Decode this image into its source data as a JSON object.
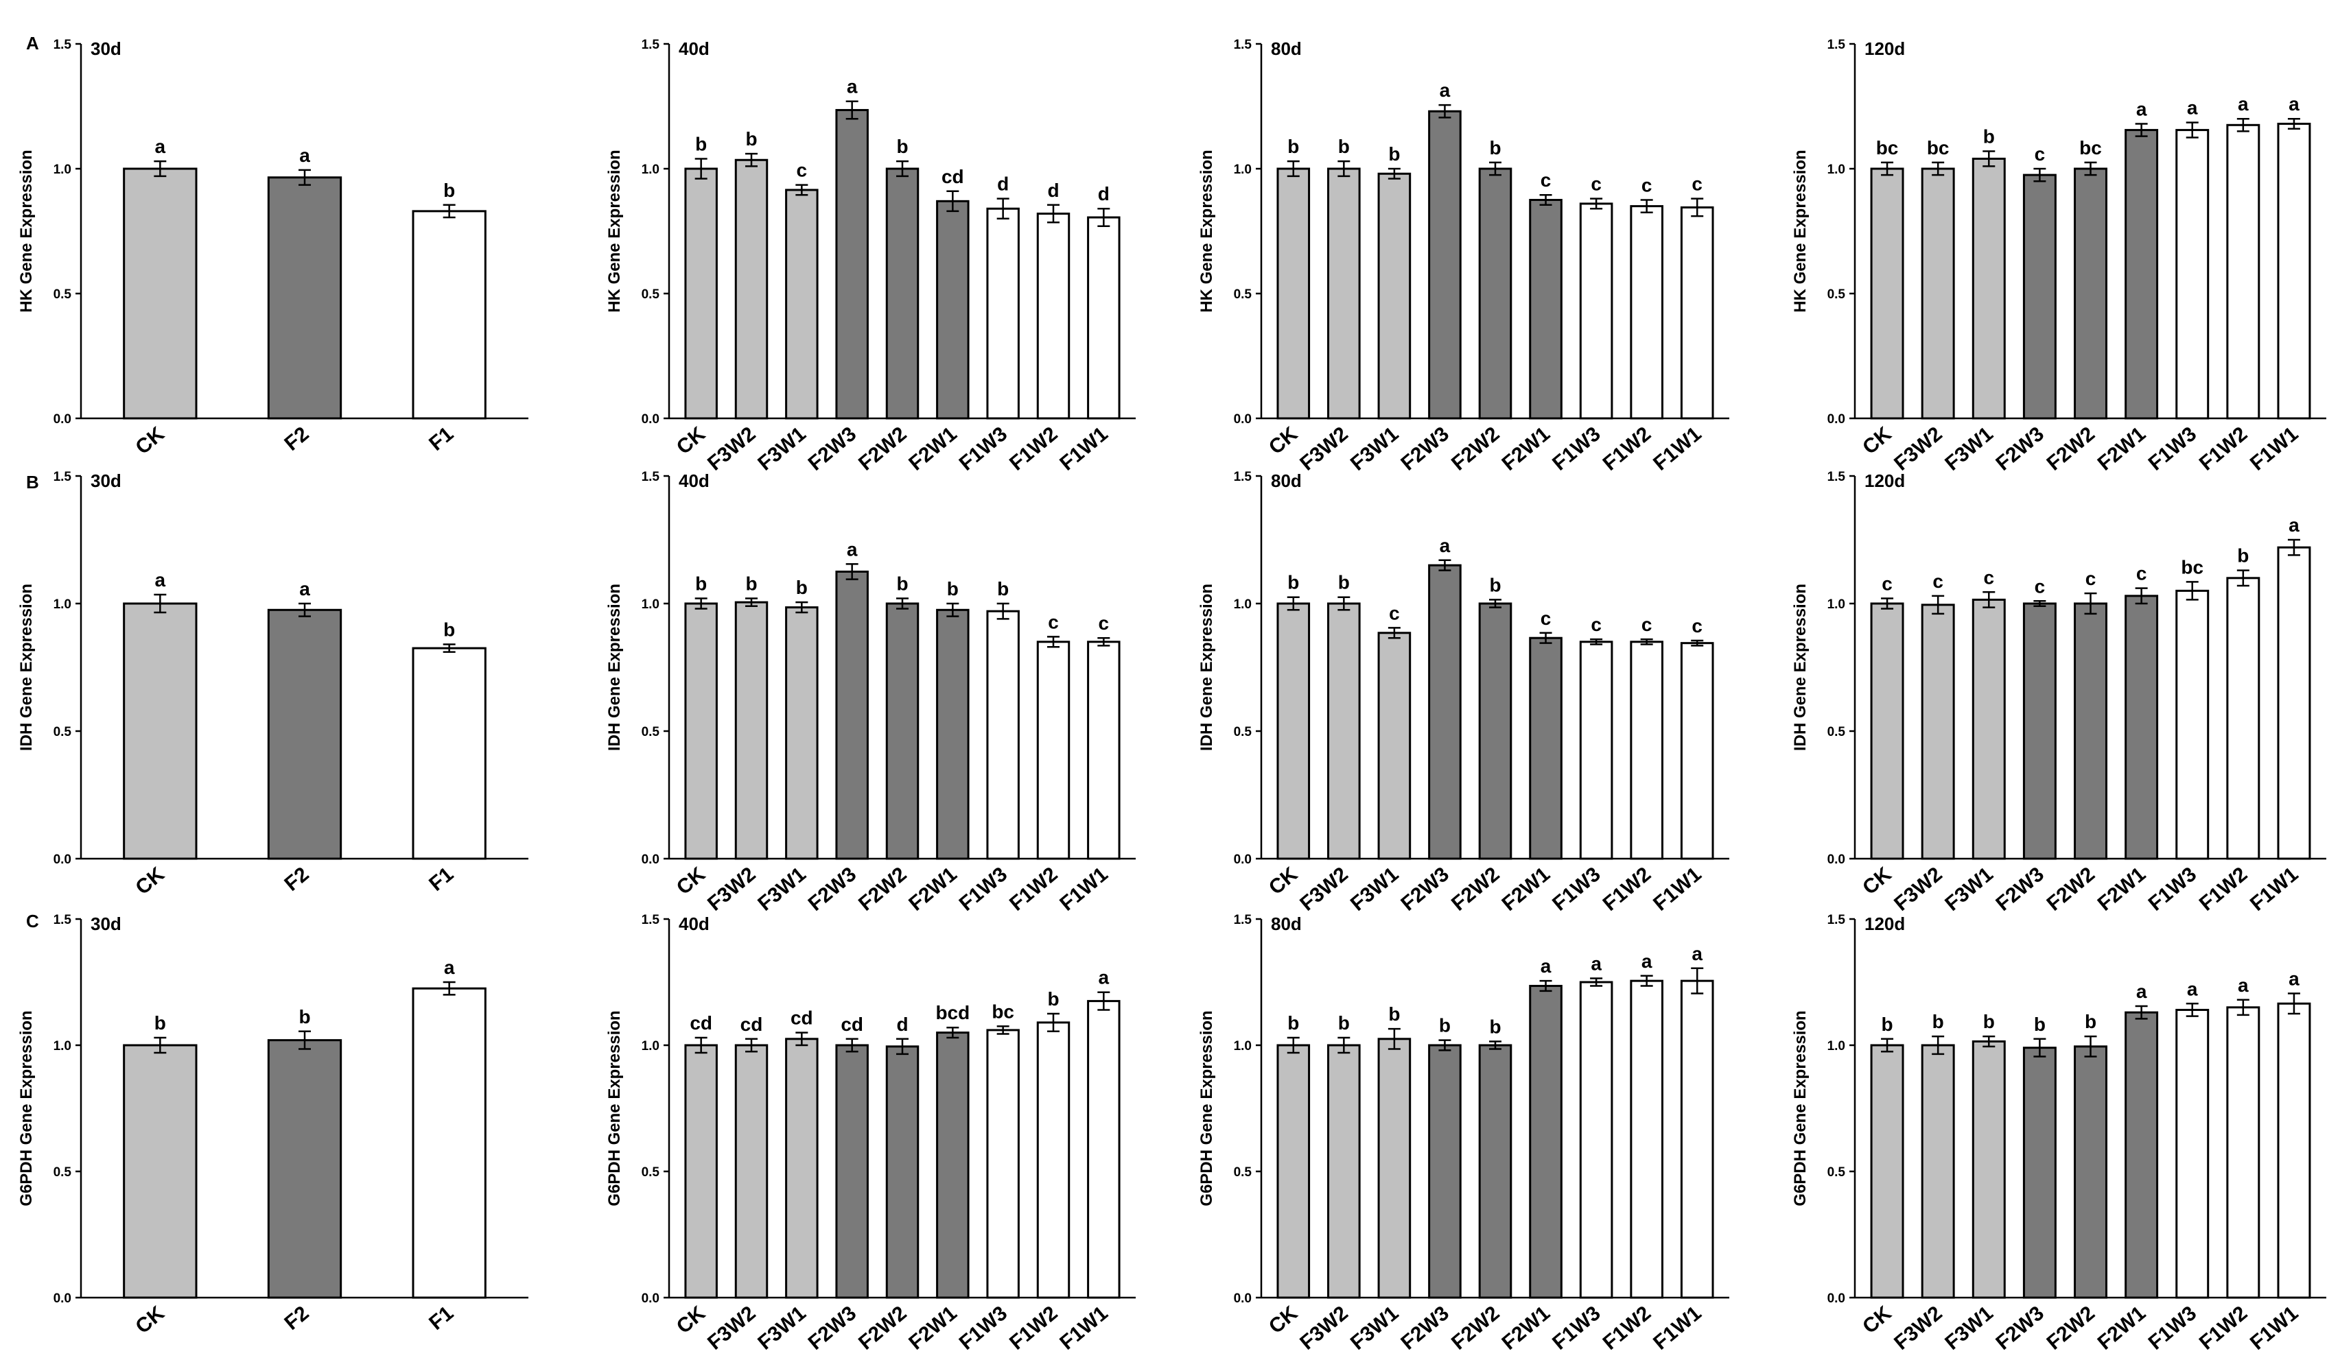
{
  "panel_labels": [
    "A",
    "B",
    "C"
  ],
  "colors": {
    "CK": "#c0c0c0",
    "F3": "#c0c0c0",
    "F2": "#7a7a7a",
    "F1": "#ffffff"
  },
  "y_ticks": [
    "0.0",
    "0.5",
    "1.0",
    "1.5"
  ],
  "chart_data": [
    {
      "type": "bar",
      "row": 0,
      "col": 0,
      "title": "30d",
      "ylabel": "HK Gene Expression",
      "ylim": [
        0,
        1.5
      ],
      "categories": [
        "CK",
        "F2",
        "F1"
      ],
      "groups": [
        "CK",
        "F2",
        "F1"
      ],
      "values": [
        1.0,
        0.965,
        0.83
      ],
      "errors": [
        0.03,
        0.03,
        0.025
      ],
      "letters": [
        "a",
        "a",
        "b"
      ]
    },
    {
      "type": "bar",
      "row": 0,
      "col": 1,
      "title": "40d",
      "ylabel": "HK Gene Expression",
      "ylim": [
        0,
        1.5
      ],
      "categories": [
        "CK",
        "F3W2",
        "F3W1",
        "F2W3",
        "F2W2",
        "F2W1",
        "F1W3",
        "F1W2",
        "F1W1"
      ],
      "groups": [
        "CK",
        "F3",
        "F3",
        "F2",
        "F2",
        "F2",
        "F1",
        "F1",
        "F1"
      ],
      "values": [
        1.0,
        1.035,
        0.915,
        1.235,
        1.0,
        0.87,
        0.84,
        0.82,
        0.805
      ],
      "errors": [
        0.04,
        0.025,
        0.02,
        0.035,
        0.03,
        0.04,
        0.04,
        0.035,
        0.035
      ],
      "letters": [
        "b",
        "b",
        "c",
        "a",
        "b",
        "cd",
        "d",
        "d",
        "d"
      ]
    },
    {
      "type": "bar",
      "row": 0,
      "col": 2,
      "title": "80d",
      "ylabel": "HK Gene Expression",
      "ylim": [
        0,
        1.5
      ],
      "categories": [
        "CK",
        "F3W2",
        "F3W1",
        "F2W3",
        "F2W2",
        "F2W1",
        "F1W3",
        "F1W2",
        "F1W1"
      ],
      "groups": [
        "CK",
        "F3",
        "F3",
        "F2",
        "F2",
        "F2",
        "F1",
        "F1",
        "F1"
      ],
      "values": [
        1.0,
        1.0,
        0.98,
        1.23,
        1.0,
        0.875,
        0.86,
        0.85,
        0.845
      ],
      "errors": [
        0.03,
        0.03,
        0.02,
        0.025,
        0.025,
        0.02,
        0.02,
        0.025,
        0.035
      ],
      "letters": [
        "b",
        "b",
        "b",
        "a",
        "b",
        "c",
        "c",
        "c",
        "c"
      ]
    },
    {
      "type": "bar",
      "row": 0,
      "col": 3,
      "title": "120d",
      "ylabel": "HK Gene Expression",
      "ylim": [
        0,
        1.5
      ],
      "categories": [
        "CK",
        "F3W2",
        "F3W1",
        "F2W3",
        "F2W2",
        "F2W1",
        "F1W3",
        "F1W2",
        "F1W1"
      ],
      "groups": [
        "CK",
        "F3",
        "F3",
        "F2",
        "F2",
        "F2",
        "F1",
        "F1",
        "F1"
      ],
      "values": [
        1.0,
        1.0,
        1.04,
        0.975,
        1.0,
        1.155,
        1.155,
        1.175,
        1.18
      ],
      "errors": [
        0.025,
        0.025,
        0.03,
        0.025,
        0.025,
        0.025,
        0.03,
        0.025,
        0.02
      ],
      "letters": [
        "bc",
        "bc",
        "b",
        "c",
        "bc",
        "a",
        "a",
        "a",
        "a"
      ]
    },
    {
      "type": "bar",
      "row": 1,
      "col": 0,
      "title": "30d",
      "ylabel": "IDH Gene Expression",
      "ylim": [
        0,
        1.5
      ],
      "categories": [
        "CK",
        "F2",
        "F1"
      ],
      "groups": [
        "CK",
        "F2",
        "F1"
      ],
      "values": [
        1.0,
        0.975,
        0.825
      ],
      "errors": [
        0.035,
        0.025,
        0.015
      ],
      "letters": [
        "a",
        "a",
        "b"
      ]
    },
    {
      "type": "bar",
      "row": 1,
      "col": 1,
      "title": "40d",
      "ylabel": "IDH Gene Expression",
      "ylim": [
        0,
        1.5
      ],
      "categories": [
        "CK",
        "F3W2",
        "F3W1",
        "F2W3",
        "F2W2",
        "F2W1",
        "F1W3",
        "F1W2",
        "F1W1"
      ],
      "groups": [
        "CK",
        "F3",
        "F3",
        "F2",
        "F2",
        "F2",
        "F1",
        "F1",
        "F1"
      ],
      "values": [
        1.0,
        1.005,
        0.985,
        1.125,
        1.0,
        0.975,
        0.97,
        0.85,
        0.85
      ],
      "errors": [
        0.02,
        0.015,
        0.02,
        0.03,
        0.02,
        0.025,
        0.03,
        0.02,
        0.015
      ],
      "letters": [
        "b",
        "b",
        "b",
        "a",
        "b",
        "b",
        "b",
        "c",
        "c"
      ]
    },
    {
      "type": "bar",
      "row": 1,
      "col": 2,
      "title": "80d",
      "ylabel": "IDH Gene Expression",
      "ylim": [
        0,
        1.5
      ],
      "categories": [
        "CK",
        "F3W2",
        "F3W1",
        "F2W3",
        "F2W2",
        "F2W1",
        "F1W3",
        "F1W2",
        "F1W1"
      ],
      "groups": [
        "CK",
        "F3",
        "F3",
        "F2",
        "F2",
        "F2",
        "F1",
        "F1",
        "F1"
      ],
      "values": [
        1.0,
        1.0,
        0.885,
        1.15,
        1.0,
        0.865,
        0.85,
        0.85,
        0.845
      ],
      "errors": [
        0.025,
        0.025,
        0.02,
        0.02,
        0.015,
        0.02,
        0.01,
        0.01,
        0.01
      ],
      "letters": [
        "b",
        "b",
        "c",
        "a",
        "b",
        "c",
        "c",
        "c",
        "c"
      ]
    },
    {
      "type": "bar",
      "row": 1,
      "col": 3,
      "title": "120d",
      "ylabel": "IDH Gene Expression",
      "ylim": [
        0,
        1.5
      ],
      "categories": [
        "CK",
        "F3W2",
        "F3W1",
        "F2W3",
        "F2W2",
        "F2W1",
        "F1W3",
        "F1W2",
        "F1W1"
      ],
      "groups": [
        "CK",
        "F3",
        "F3",
        "F2",
        "F2",
        "F2",
        "F1",
        "F1",
        "F1"
      ],
      "values": [
        1.0,
        0.995,
        1.015,
        1.0,
        1.0,
        1.03,
        1.05,
        1.1,
        1.22
      ],
      "errors": [
        0.02,
        0.035,
        0.03,
        0.01,
        0.04,
        0.03,
        0.035,
        0.03,
        0.03
      ],
      "letters": [
        "c",
        "c",
        "c",
        "c",
        "c",
        "c",
        "bc",
        "b",
        "a"
      ]
    },
    {
      "type": "bar",
      "row": 2,
      "col": 0,
      "title": "30d",
      "ylabel": "G6PDH Gene Expression",
      "ylim": [
        0,
        1.5
      ],
      "categories": [
        "CK",
        "F2",
        "F1"
      ],
      "groups": [
        "CK",
        "F2",
        "F1"
      ],
      "values": [
        1.0,
        1.02,
        1.225
      ],
      "errors": [
        0.03,
        0.035,
        0.025
      ],
      "letters": [
        "b",
        "b",
        "a"
      ]
    },
    {
      "type": "bar",
      "row": 2,
      "col": 1,
      "title": "40d",
      "ylabel": "G6PDH Gene Expression",
      "ylim": [
        0,
        1.5
      ],
      "categories": [
        "CK",
        "F3W2",
        "F3W1",
        "F2W3",
        "F2W2",
        "F2W1",
        "F1W3",
        "F1W2",
        "F1W1"
      ],
      "groups": [
        "CK",
        "F3",
        "F3",
        "F2",
        "F2",
        "F2",
        "F1",
        "F1",
        "F1"
      ],
      "values": [
        1.0,
        1.0,
        1.025,
        1.0,
        0.995,
        1.05,
        1.06,
        1.09,
        1.175
      ],
      "errors": [
        0.03,
        0.025,
        0.025,
        0.025,
        0.03,
        0.02,
        0.015,
        0.035,
        0.035
      ],
      "letters": [
        "cd",
        "cd",
        "cd",
        "cd",
        "d",
        "bcd",
        "bc",
        "b",
        "a"
      ]
    },
    {
      "type": "bar",
      "row": 2,
      "col": 2,
      "title": "80d",
      "ylabel": "G6PDH Gene Expression",
      "ylim": [
        0,
        1.5
      ],
      "categories": [
        "CK",
        "F3W2",
        "F3W1",
        "F2W3",
        "F2W2",
        "F2W1",
        "F1W3",
        "F1W2",
        "F1W1"
      ],
      "groups": [
        "CK",
        "F3",
        "F3",
        "F2",
        "F2",
        "F2",
        "F1",
        "F1",
        "F1"
      ],
      "values": [
        1.0,
        1.0,
        1.025,
        1.0,
        1.0,
        1.235,
        1.25,
        1.255,
        1.255
      ],
      "errors": [
        0.03,
        0.03,
        0.04,
        0.02,
        0.015,
        0.02,
        0.015,
        0.02,
        0.05
      ],
      "letters": [
        "b",
        "b",
        "b",
        "b",
        "b",
        "a",
        "a",
        "a",
        "a"
      ]
    },
    {
      "type": "bar",
      "row": 2,
      "col": 3,
      "title": "120d",
      "ylabel": "G6PDH Gene Expression",
      "ylim": [
        0,
        1.5
      ],
      "categories": [
        "CK",
        "F3W2",
        "F3W1",
        "F2W3",
        "F2W2",
        "F2W1",
        "F1W3",
        "F1W2",
        "F1W1"
      ],
      "groups": [
        "CK",
        "F3",
        "F3",
        "F2",
        "F2",
        "F2",
        "F1",
        "F1",
        "F1"
      ],
      "values": [
        1.0,
        1.0,
        1.015,
        0.99,
        0.995,
        1.13,
        1.14,
        1.15,
        1.165
      ],
      "errors": [
        0.025,
        0.035,
        0.02,
        0.035,
        0.04,
        0.025,
        0.025,
        0.03,
        0.04
      ],
      "letters": [
        "b",
        "b",
        "b",
        "b",
        "b",
        "a",
        "a",
        "a",
        "a"
      ]
    }
  ]
}
